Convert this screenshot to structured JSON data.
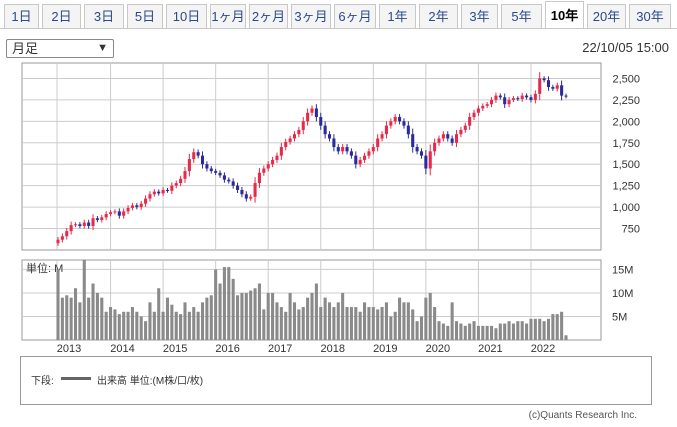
{
  "tabs": [
    {
      "label": "1日"
    },
    {
      "label": "2日"
    },
    {
      "label": "3日"
    },
    {
      "label": "5日"
    },
    {
      "label": "10日"
    },
    {
      "label": "1ヶ月"
    },
    {
      "label": "2ヶ月"
    },
    {
      "label": "3ヶ月"
    },
    {
      "label": "6ヶ月"
    },
    {
      "label": "1年"
    },
    {
      "label": "2年"
    },
    {
      "label": "3年"
    },
    {
      "label": "5年"
    },
    {
      "label": "10年",
      "active": true
    },
    {
      "label": "20年"
    },
    {
      "label": "30年"
    }
  ],
  "period_select": {
    "value": "月足"
  },
  "timestamp": "22/10/05 15:00",
  "colors": {
    "up": "#e8294a",
    "down": "#2a2a9a",
    "volume": "#8a8a8a",
    "grid": "#cccccc"
  },
  "chart_data": [
    {
      "type": "candlestick",
      "title": "",
      "x_ticks": [
        "2013",
        "2014",
        "2015",
        "2016",
        "2017",
        "2018",
        "2019",
        "2020",
        "2021",
        "2022"
      ],
      "y_ticks": [
        "750",
        "1,000",
        "1,250",
        "1,500",
        "1,750",
        "2,000",
        "2,250",
        "2,500"
      ],
      "ylim": [
        500,
        2680
      ],
      "grid": true,
      "series": [
        {
          "name": "",
          "close": [
            620,
            660,
            720,
            790,
            800,
            780,
            820,
            780,
            870,
            850,
            880,
            920,
            940,
            950,
            900,
            950,
            990,
            1020,
            1000,
            1040,
            1100,
            1150,
            1180,
            1160,
            1200,
            1190,
            1250,
            1280,
            1330,
            1420,
            1560,
            1640,
            1600,
            1500,
            1450,
            1420,
            1400,
            1370,
            1320,
            1300,
            1250,
            1200,
            1150,
            1100,
            1120,
            1280,
            1400,
            1450,
            1500,
            1550,
            1600,
            1700,
            1760,
            1800,
            1850,
            1900,
            2000,
            2100,
            2150,
            2050,
            1950,
            1850,
            1800,
            1700,
            1650,
            1700,
            1650,
            1600,
            1500,
            1550,
            1600,
            1650,
            1700,
            1800,
            1850,
            1950,
            2000,
            2050,
            2000,
            1950,
            1850,
            1700,
            1650,
            1600,
            1450,
            1650,
            1750,
            1800,
            1850,
            1800,
            1750,
            1850,
            1900,
            1950,
            2050,
            2100,
            2150,
            2180,
            2200,
            2250,
            2300,
            2280,
            2200,
            2250,
            2270,
            2260,
            2300,
            2280,
            2250,
            2320,
            2500,
            2480,
            2400,
            2380,
            2420,
            2300,
            2290
          ]
        }
      ]
    },
    {
      "type": "bar",
      "title": "",
      "y_ticks": [
        "5M",
        "10M",
        "15M"
      ],
      "ylim": [
        0,
        17
      ],
      "series": [
        {
          "name": "出来高",
          "values": [
            15,
            9,
            9.5,
            9,
            11,
            8,
            17,
            9,
            12,
            10,
            9,
            6,
            7,
            6.5,
            5.5,
            6,
            6,
            7,
            6,
            5,
            4,
            8,
            6,
            11,
            6,
            9,
            7.5,
            6,
            5.5,
            8,
            6,
            7,
            6,
            8,
            9,
            9.5,
            15,
            12,
            15.5,
            15.5,
            13,
            9.5,
            10,
            10,
            10.5,
            11,
            12,
            6.5,
            10,
            10,
            8,
            7,
            6,
            10,
            8,
            6.5,
            7,
            9,
            10,
            12,
            7,
            9,
            8,
            7,
            8,
            10,
            7,
            7,
            7,
            6,
            8,
            7,
            7,
            6.5,
            7,
            8,
            5,
            6,
            9,
            8,
            8,
            6.5,
            4,
            5,
            9,
            10,
            7,
            4,
            3.5,
            3,
            8,
            4,
            3.5,
            3,
            3.5,
            4,
            3,
            3,
            3,
            3,
            2.5,
            3.5,
            3.5,
            4,
            3.5,
            4,
            4,
            3.5,
            4.5,
            4.5,
            4.5,
            4,
            4.5,
            5.5,
            5.5,
            6,
            1
          ]
        }
      ]
    }
  ],
  "legend": {
    "label": "下段:",
    "text": "出来高 単位:(M株/口/枚)"
  },
  "copyright": "(c)Quants Research Inc."
}
